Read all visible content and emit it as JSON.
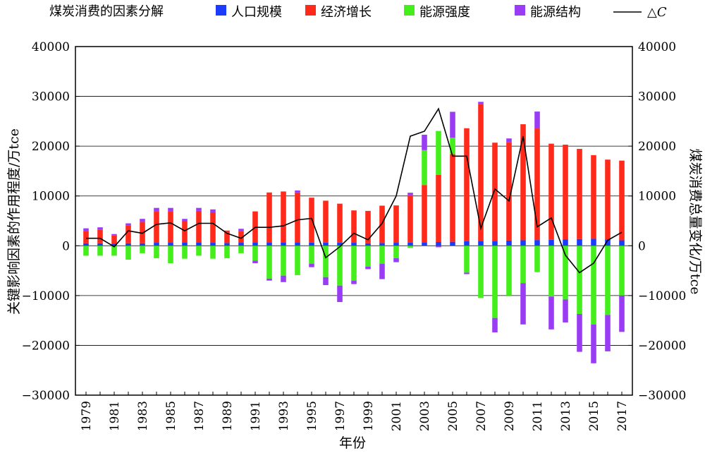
{
  "chart_data": {
    "type": "bar",
    "stacked": true,
    "legend": {
      "title": "煤炭消费的因素分解",
      "placement": "top",
      "delta_label": "△C"
    },
    "xlabel": "年份",
    "ylabel_left": "关键影响因素的作用程度/万tce",
    "ylabel_right": "煤炭消费总量变化/万tce",
    "ylim": [
      -30000,
      40000
    ],
    "yticks": [
      "40000",
      "30000",
      "20000",
      "10000",
      "0",
      "−10000",
      "−20000",
      "−30000"
    ],
    "ytick_values": [
      40000,
      30000,
      20000,
      10000,
      0,
      -10000,
      -20000,
      -30000
    ],
    "grid": "horizontal",
    "x": [
      1979,
      1980,
      1981,
      1982,
      1983,
      1984,
      1985,
      1986,
      1987,
      1988,
      1989,
      1990,
      1991,
      1992,
      1993,
      1994,
      1995,
      1996,
      1997,
      1998,
      1999,
      2000,
      2001,
      2002,
      2003,
      2004,
      2005,
      2006,
      2007,
      2008,
      2009,
      2010,
      2011,
      2012,
      2013,
      2014,
      2015,
      2016,
      2017
    ],
    "x_tick_labels": [
      "1979",
      "1981",
      "1983",
      "1985",
      "1987",
      "1989",
      "1991",
      "1993",
      "1995",
      "1997",
      "1999",
      "2001",
      "2003",
      "2005",
      "2007",
      "2009",
      "2011",
      "2013",
      "2015",
      "2017"
    ],
    "series": [
      {
        "name": "人口规模",
        "color": "#1a3cff",
        "values": [
          500,
          500,
          450,
          500,
          500,
          600,
          600,
          700,
          700,
          600,
          550,
          600,
          700,
          700,
          700,
          700,
          650,
          650,
          650,
          600,
          500,
          550,
          600,
          650,
          700,
          750,
          800,
          900,
          1000,
          1000,
          1050,
          1100,
          1150,
          1200,
          1300,
          1350,
          1400,
          1300,
          1100
        ]
      },
      {
        "name": "经济增长",
        "color": "#ff2a1a",
        "values": [
          2500,
          2700,
          1600,
          3600,
          4300,
          6300,
          6300,
          4300,
          6300,
          6100,
          2500,
          2300,
          6200,
          10000,
          10200,
          10000,
          9000,
          8400,
          7800,
          6500,
          6500,
          7500,
          7500,
          9500,
          11500,
          13500,
          17600,
          22700,
          27400,
          19700,
          19700,
          23300,
          22400,
          19300,
          19000,
          18100,
          16800,
          16000,
          16000
        ]
      },
      {
        "name": "能源强度",
        "color": "#44ee1a",
        "values": [
          -2000,
          -2000,
          -2000,
          -2800,
          -1500,
          -2500,
          -3500,
          -2600,
          -2000,
          -2600,
          -2500,
          -1500,
          -3000,
          -6600,
          -6000,
          -5900,
          -3600,
          -6300,
          -8000,
          -7000,
          -4200,
          -3600,
          -2500,
          -400,
          7000,
          8800,
          3300,
          -5400,
          -10500,
          -14500,
          -10000,
          -7500,
          -5300,
          -10200,
          -10800,
          -13700,
          -15800,
          -13900,
          -10000
        ]
      },
      {
        "name": "能源结构",
        "color": "#9b3cf5",
        "values": [
          500,
          500,
          300,
          400,
          600,
          700,
          700,
          400,
          600,
          600,
          0,
          500,
          -500,
          -400,
          -1300,
          400,
          -700,
          -1600,
          -3300,
          -700,
          -500,
          -3100,
          -800,
          500,
          3100,
          -300,
          5200,
          -300,
          500,
          -2900,
          800,
          -8300,
          3400,
          -6600,
          -4600,
          -7600,
          -7800,
          -7300,
          -7300
        ]
      }
    ],
    "delta_c": {
      "name": "△C",
      "color": "#000000",
      "values": [
        1500,
        1500,
        -200,
        3000,
        2500,
        4300,
        4600,
        3000,
        4500,
        4500,
        2500,
        1500,
        3700,
        3700,
        4000,
        5200,
        5500,
        -2400,
        -200,
        2500,
        1200,
        4500,
        10000,
        22000,
        23000,
        27500,
        18000,
        18000,
        3500,
        11400,
        9000,
        22000,
        3800,
        5600,
        -1900,
        -5400,
        -3500,
        1100,
        2700
      ]
    }
  }
}
